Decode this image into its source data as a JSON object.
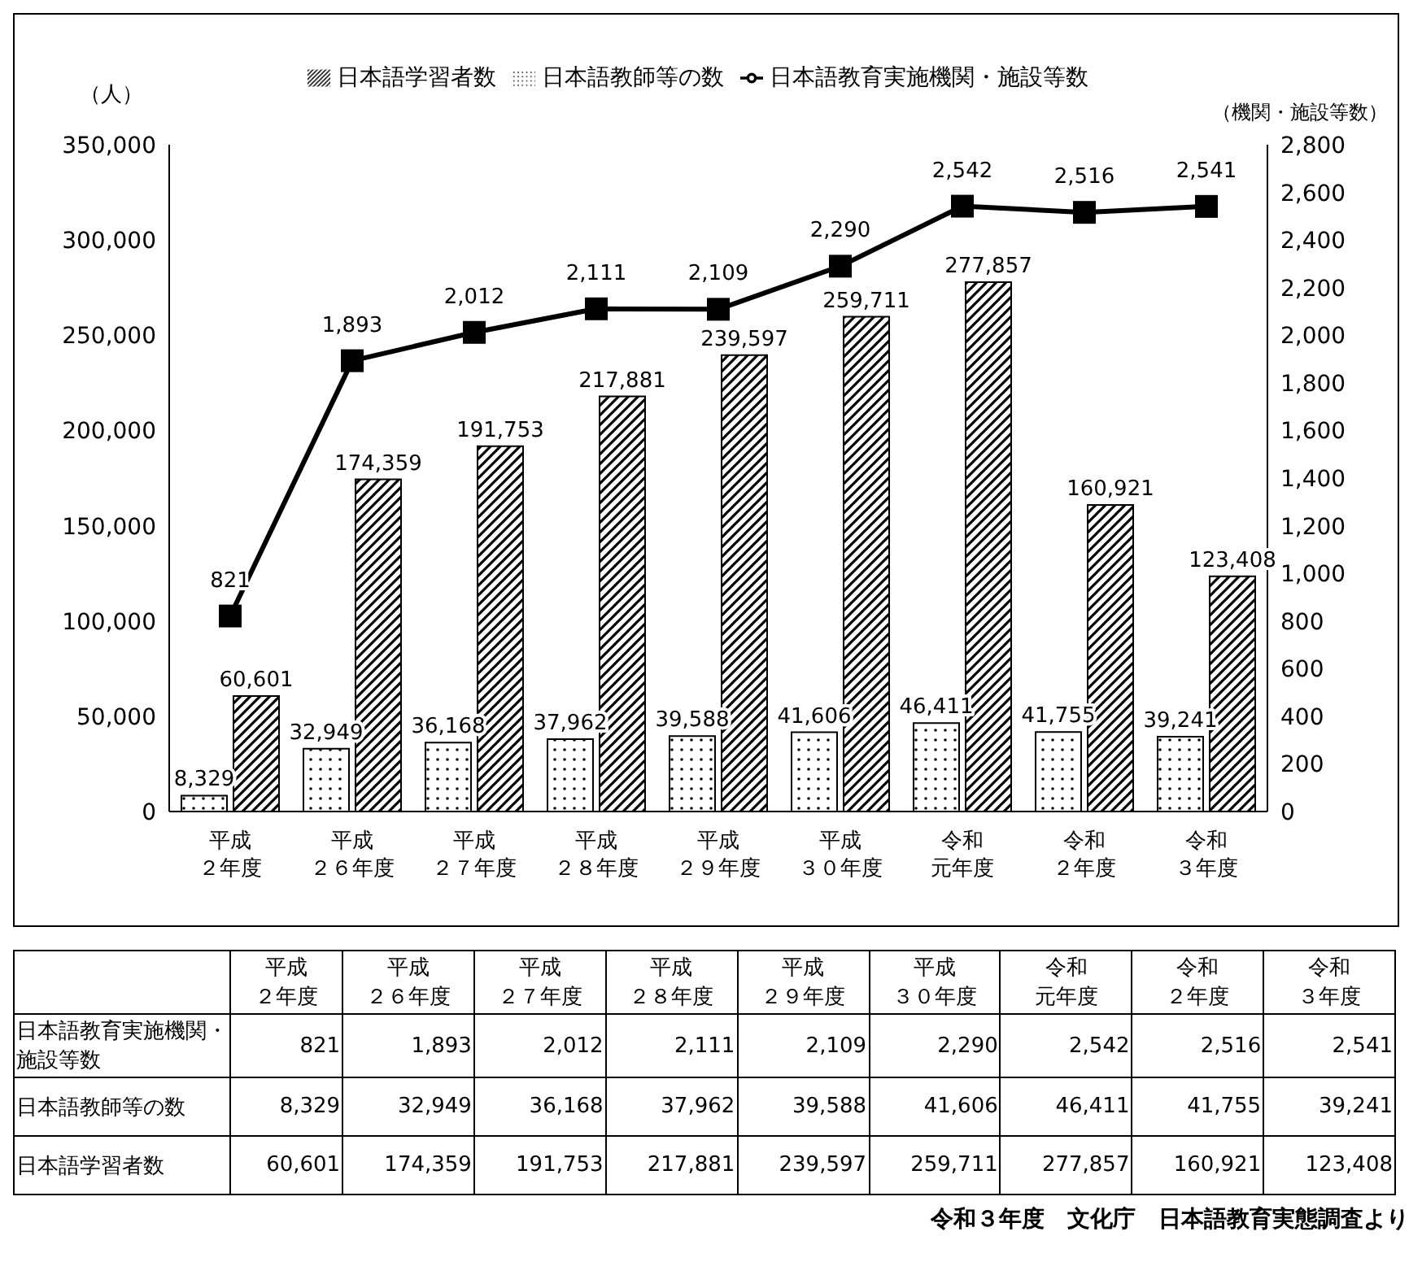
{
  "chart_data": {
    "type": "bar",
    "ylabel": "（人）",
    "y2label": "（機関・施設等数）",
    "categories": [
      "平成２年度",
      "平成２６年度",
      "平成２７年度",
      "平成２８年度",
      "平成２９年度",
      "平成３０年度",
      "令和元年度",
      "令和２年度",
      "令和３年度"
    ],
    "series": [
      {
        "name": "日本語教師等の数",
        "color": "#000000",
        "values": [
          8329,
          32949,
          36168,
          37962,
          39588,
          41606,
          46411,
          41755,
          39241
        ],
        "value_labels": [
          "8,329",
          "32,949",
          "36,168",
          "37,962",
          "39,588",
          "41,606",
          "46,411",
          "41,755",
          "39,241"
        ]
      },
      {
        "name": "日本語学習者数",
        "color": "#000000",
        "values": [
          60601,
          174359,
          191753,
          217881,
          239597,
          259711,
          277857,
          160921,
          123408
        ],
        "value_labels": [
          "60,601",
          "174,359",
          "191,753",
          "217,881",
          "239,597",
          "259,711",
          "277,857",
          "160,921",
          "123,408"
        ]
      },
      {
        "name": "日本語教育実施機関・施設等数",
        "type": "line",
        "axis": "y2",
        "marker": "square",
        "color": "#000000",
        "values": [
          821,
          1893,
          2012,
          2111,
          2109,
          2290,
          2542,
          2516,
          2541
        ],
        "value_labels": [
          "821",
          "1,893",
          "2,012",
          "2,111",
          "2,109",
          "2,290",
          "2,542",
          "2,516",
          "2,541"
        ]
      }
    ],
    "ylim": [
      0,
      350000
    ],
    "yticks": [
      0,
      {
        "value": 50000,
        "label": "50,000"
      },
      {
        "value": 100000,
        "label": "100,000"
      },
      {
        "value": 150000,
        "label": "150,000"
      },
      {
        "value": 200000,
        "label": "200,000"
      },
      {
        "value": 250000,
        "label": "250,000"
      },
      {
        "value": 300000,
        "label": "300,000"
      },
      {
        "value": 350000,
        "label": "350,000"
      }
    ],
    "y2lim": [
      0,
      2800
    ],
    "y2ticks": [
      0,
      200,
      400,
      600,
      800,
      {
        "value": 1000,
        "label": "1,000"
      },
      {
        "value": 1200,
        "label": "1,200"
      },
      {
        "value": 1400,
        "label": "1,400"
      },
      {
        "value": 1600,
        "label": "1,600"
      },
      {
        "value": 1800,
        "label": "1,800"
      },
      {
        "value": 2000,
        "label": "2,000"
      },
      {
        "value": 2200,
        "label": "2,200"
      },
      {
        "value": 2400,
        "label": "2,400"
      },
      {
        "value": 2600,
        "label": "2,600"
      },
      {
        "value": 2800,
        "label": "2,800"
      }
    ],
    "legend": "top",
    "annotations": [
      "令和３年度　文化庁　日本語教育実態調査より"
    ]
  }
}
